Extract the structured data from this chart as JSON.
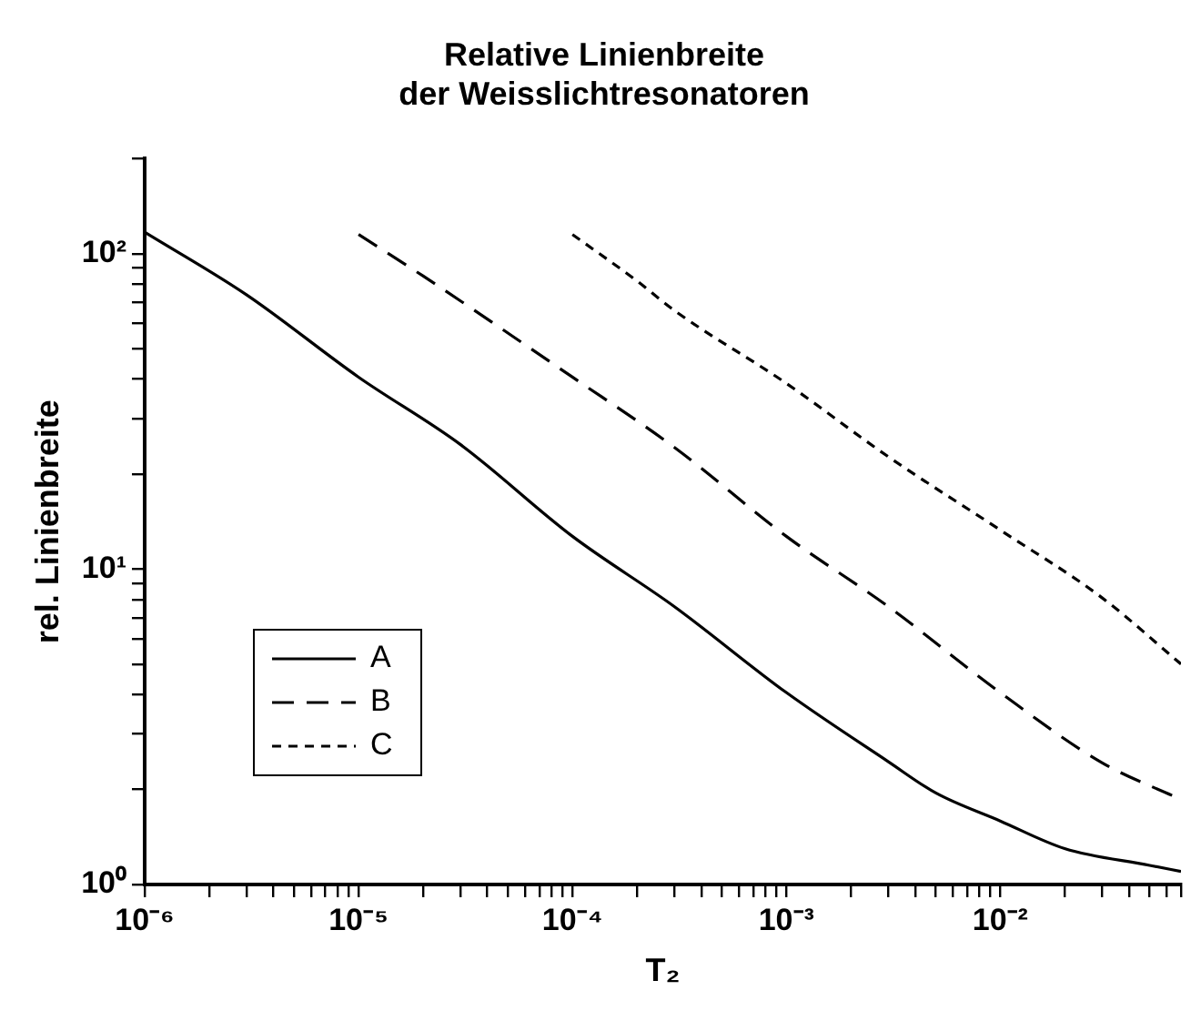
{
  "chart_data": {
    "type": "line",
    "title": "Relative Linienbreite\nder Weisslichtresonatoren",
    "xlabel": "T₂",
    "ylabel": "rel. Linienbreite",
    "log": "xy",
    "grid": false,
    "legend": "bottom left",
    "marker": "none",
    "xlim": [
      1e-06,
      0.07
    ],
    "ylim": [
      1,
      200
    ],
    "xticks": [
      {
        "value": 1e-06,
        "label": "10⁻⁶"
      },
      {
        "value": 2e-06,
        "label": null
      },
      {
        "value": 3e-06,
        "label": null
      },
      {
        "value": 4e-06,
        "label": null
      },
      {
        "value": 5e-06,
        "label": null
      },
      {
        "value": 6e-06,
        "label": null
      },
      {
        "value": 7e-06,
        "label": null
      },
      {
        "value": 8e-06,
        "label": null
      },
      {
        "value": 9e-06,
        "label": null
      },
      {
        "value": 1e-05,
        "label": "10⁻⁵"
      },
      {
        "value": 2e-05,
        "label": null
      },
      {
        "value": 3e-05,
        "label": null
      },
      {
        "value": 4e-05,
        "label": null
      },
      {
        "value": 5e-05,
        "label": null
      },
      {
        "value": 6e-05,
        "label": null
      },
      {
        "value": 7e-05,
        "label": null
      },
      {
        "value": 8e-05,
        "label": null
      },
      {
        "value": 9e-05,
        "label": null
      },
      {
        "value": 0.0001,
        "label": "10⁻⁴"
      },
      {
        "value": 0.0002,
        "label": null
      },
      {
        "value": 0.0003,
        "label": null
      },
      {
        "value": 0.0004,
        "label": null
      },
      {
        "value": 0.0005,
        "label": null
      },
      {
        "value": 0.0006,
        "label": null
      },
      {
        "value": 0.0007,
        "label": null
      },
      {
        "value": 0.0008,
        "label": null
      },
      {
        "value": 0.0009,
        "label": null
      },
      {
        "value": 0.001,
        "label": "10⁻³"
      },
      {
        "value": 0.002,
        "label": null
      },
      {
        "value": 0.003,
        "label": null
      },
      {
        "value": 0.004,
        "label": null
      },
      {
        "value": 0.005,
        "label": null
      },
      {
        "value": 0.006,
        "label": null
      },
      {
        "value": 0.007,
        "label": null
      },
      {
        "value": 0.008,
        "label": null
      },
      {
        "value": 0.009,
        "label": null
      },
      {
        "value": 0.01,
        "label": "10⁻²"
      },
      {
        "value": 0.02,
        "label": null
      },
      {
        "value": 0.03,
        "label": null
      },
      {
        "value": 0.04,
        "label": null
      },
      {
        "value": 0.05,
        "label": null
      },
      {
        "value": 0.06,
        "label": null
      },
      {
        "value": 0.07,
        "label": null
      }
    ],
    "yticks": [
      {
        "value": 1,
        "label": "10⁰"
      },
      {
        "value": 2,
        "label": null
      },
      {
        "value": 3,
        "label": null
      },
      {
        "value": 4,
        "label": null
      },
      {
        "value": 5,
        "label": null
      },
      {
        "value": 6,
        "label": null
      },
      {
        "value": 7,
        "label": null
      },
      {
        "value": 8,
        "label": null
      },
      {
        "value": 9,
        "label": null
      },
      {
        "value": 10,
        "label": "10¹"
      },
      {
        "value": 20,
        "label": null
      },
      {
        "value": 30,
        "label": null
      },
      {
        "value": 40,
        "label": null
      },
      {
        "value": 50,
        "label": null
      },
      {
        "value": 60,
        "label": null
      },
      {
        "value": 70,
        "label": null
      },
      {
        "value": 80,
        "label": null
      },
      {
        "value": 90,
        "label": null
      },
      {
        "value": 100,
        "label": "10²"
      },
      {
        "value": 200,
        "label": null
      }
    ],
    "series": [
      {
        "name": "A",
        "color": "#000000",
        "line_style": "solid",
        "x": [
          1e-06,
          3e-06,
          1e-05,
          3e-05,
          0.0001,
          0.0003,
          0.001,
          0.003,
          0.005,
          0.01,
          0.02,
          0.05,
          0.07
        ],
        "values": [
          117,
          74,
          40.6,
          24.8,
          12.7,
          7.6,
          4.06,
          2.45,
          1.95,
          1.59,
          1.3,
          1.15,
          1.1
        ]
      },
      {
        "name": "B",
        "color": "#000000",
        "line_style": "dashed",
        "x": [
          1e-05,
          2e-05,
          0.0001,
          0.0003,
          0.001,
          0.003,
          0.01,
          0.03,
          0.07
        ],
        "values": [
          115,
          85,
          40.6,
          24.3,
          12.7,
          7.6,
          4.06,
          2.43,
          1.86
        ]
      },
      {
        "name": "C",
        "color": "#000000",
        "line_style": "dotted",
        "x": [
          0.0001,
          0.0002,
          0.0003,
          0.001,
          0.003,
          0.01,
          0.03,
          0.07
        ],
        "values": [
          115,
          82,
          66,
          38.8,
          22.7,
          13.3,
          8.1,
          5.0
        ]
      }
    ]
  }
}
